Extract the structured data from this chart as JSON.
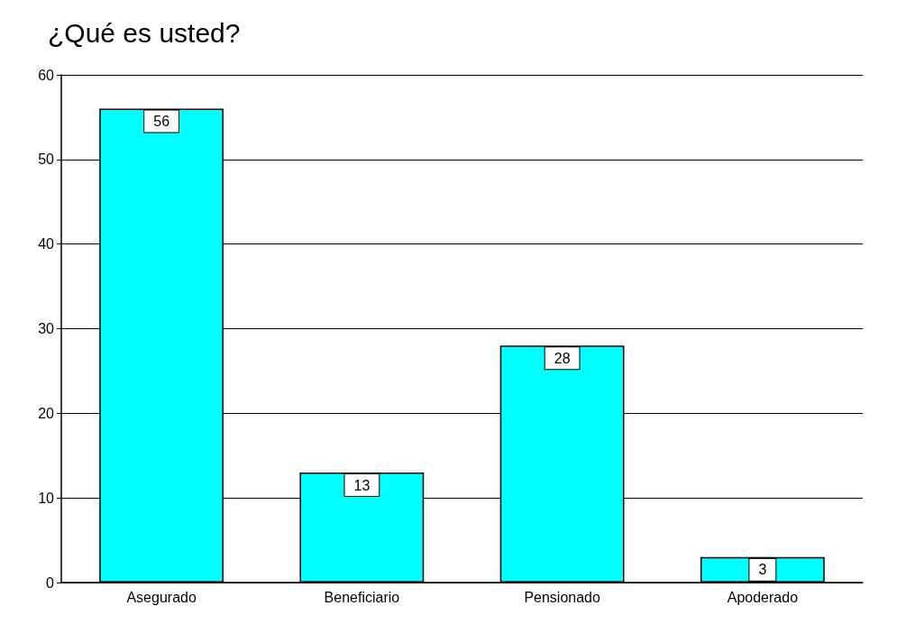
{
  "chart_data": {
    "type": "bar",
    "title": "¿Qué es usted?",
    "categories": [
      "Asegurado",
      "Beneficiario",
      "Pensionado",
      "Apoderado"
    ],
    "values": [
      56,
      13,
      28,
      3
    ],
    "color": "#00ffff",
    "ylim": [
      0,
      60
    ],
    "yticks": [
      0,
      10,
      20,
      30,
      40,
      50,
      60
    ],
    "grid": "y",
    "data_labels": true
  }
}
